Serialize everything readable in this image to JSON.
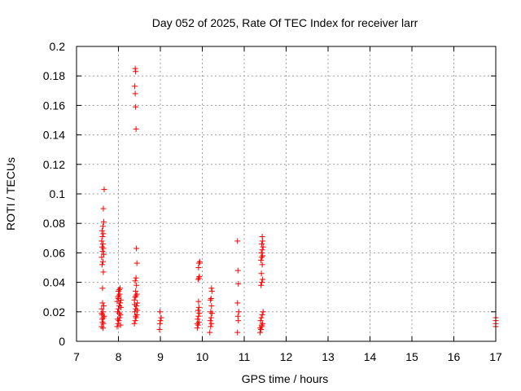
{
  "chart_data": {
    "type": "scatter",
    "title": "Day 052 of 2025, Rate Of TEC Index for receiver larr",
    "xlabel": "GPS time / hours",
    "ylabel": "ROTI / TECUs",
    "xlim": [
      7,
      17
    ],
    "ylim": [
      0,
      0.2
    ],
    "xticks": [
      "7",
      "8",
      "9",
      "10",
      "11",
      "12",
      "13",
      "14",
      "15",
      "16",
      "17"
    ],
    "yticks": [
      "0",
      "0.02",
      "0.04",
      "0.06",
      "0.08",
      "0.1",
      "0.12",
      "0.14",
      "0.16",
      "0.18",
      "0.2"
    ],
    "grid": true,
    "marker_color": "#ff0000",
    "series": [
      {
        "points": [
          [
            7.6,
            0.01
          ],
          [
            7.62,
            0.013
          ],
          [
            7.64,
            0.016
          ],
          [
            7.61,
            0.018
          ],
          [
            7.63,
            0.02
          ],
          [
            7.6,
            0.022
          ],
          [
            7.65,
            0.024
          ],
          [
            7.62,
            0.026
          ],
          [
            7.64,
            0.012
          ],
          [
            7.61,
            0.015
          ],
          [
            7.63,
            0.009
          ],
          [
            7.66,
            0.017
          ],
          [
            7.6,
            0.019
          ],
          [
            7.62,
            0.036
          ],
          [
            7.64,
            0.047
          ],
          [
            7.61,
            0.052
          ],
          [
            7.63,
            0.054
          ],
          [
            7.6,
            0.057
          ],
          [
            7.65,
            0.059
          ],
          [
            7.62,
            0.061
          ],
          [
            7.64,
            0.063
          ],
          [
            7.61,
            0.064
          ],
          [
            7.63,
            0.066
          ],
          [
            7.6,
            0.068
          ],
          [
            7.62,
            0.071
          ],
          [
            7.64,
            0.073
          ],
          [
            7.61,
            0.075
          ],
          [
            7.63,
            0.078
          ],
          [
            7.65,
            0.081
          ],
          [
            7.64,
            0.09
          ],
          [
            7.66,
            0.103
          ],
          [
            7.97,
            0.01
          ],
          [
            7.99,
            0.012
          ],
          [
            8.01,
            0.014
          ],
          [
            8.03,
            0.016
          ],
          [
            8.05,
            0.018
          ],
          [
            7.98,
            0.02
          ],
          [
            8.0,
            0.022
          ],
          [
            8.02,
            0.024
          ],
          [
            8.04,
            0.026
          ],
          [
            8.06,
            0.028
          ],
          [
            7.99,
            0.03
          ],
          [
            8.01,
            0.031
          ],
          [
            8.03,
            0.032
          ],
          [
            8.0,
            0.034
          ],
          [
            8.02,
            0.035
          ],
          [
            8.04,
            0.036
          ],
          [
            7.98,
            0.015
          ],
          [
            8.05,
            0.011
          ],
          [
            8.02,
            0.019
          ],
          [
            8.06,
            0.023
          ],
          [
            7.97,
            0.027
          ],
          [
            8.0,
            0.029
          ],
          [
            8.38,
            0.012
          ],
          [
            8.4,
            0.014
          ],
          [
            8.42,
            0.016
          ],
          [
            8.44,
            0.018
          ],
          [
            8.39,
            0.02
          ],
          [
            8.41,
            0.022
          ],
          [
            8.43,
            0.024
          ],
          [
            8.45,
            0.026
          ],
          [
            8.38,
            0.028
          ],
          [
            8.4,
            0.03
          ],
          [
            8.42,
            0.031
          ],
          [
            8.44,
            0.032
          ],
          [
            8.41,
            0.034
          ],
          [
            8.43,
            0.038
          ],
          [
            8.4,
            0.041
          ],
          [
            8.42,
            0.043
          ],
          [
            8.44,
            0.053
          ],
          [
            8.43,
            0.063
          ],
          [
            8.39,
            0.025
          ],
          [
            8.45,
            0.021
          ],
          [
            8.41,
            0.017
          ],
          [
            8.42,
            0.144
          ],
          [
            8.41,
            0.159
          ],
          [
            8.4,
            0.168
          ],
          [
            8.39,
            0.173
          ],
          [
            8.41,
            0.183
          ],
          [
            8.4,
            0.185
          ],
          [
            8.98,
            0.008
          ],
          [
            8.99,
            0.012
          ],
          [
            9.0,
            0.014
          ],
          [
            9.02,
            0.016
          ],
          [
            8.99,
            0.02
          ],
          [
            9.88,
            0.009
          ],
          [
            9.9,
            0.011
          ],
          [
            9.92,
            0.013
          ],
          [
            9.89,
            0.015
          ],
          [
            9.91,
            0.017
          ],
          [
            9.93,
            0.019
          ],
          [
            9.9,
            0.021
          ],
          [
            9.92,
            0.023
          ],
          [
            9.88,
            0.012
          ],
          [
            9.91,
            0.027
          ],
          [
            9.9,
            0.042
          ],
          [
            9.92,
            0.043
          ],
          [
            9.93,
            0.044
          ],
          [
            9.91,
            0.05
          ],
          [
            9.92,
            0.053
          ],
          [
            9.94,
            0.054
          ],
          [
            10.18,
            0.006
          ],
          [
            10.2,
            0.01
          ],
          [
            10.22,
            0.012
          ],
          [
            10.19,
            0.014
          ],
          [
            10.21,
            0.016
          ],
          [
            10.23,
            0.019
          ],
          [
            10.2,
            0.02
          ],
          [
            10.22,
            0.024
          ],
          [
            10.19,
            0.028
          ],
          [
            10.21,
            0.029
          ],
          [
            10.23,
            0.034
          ],
          [
            10.22,
            0.036
          ],
          [
            10.84,
            0.006
          ],
          [
            10.86,
            0.014
          ],
          [
            10.85,
            0.017
          ],
          [
            10.87,
            0.02
          ],
          [
            10.84,
            0.026
          ],
          [
            10.86,
            0.039
          ],
          [
            10.85,
            0.048
          ],
          [
            10.84,
            0.068
          ],
          [
            11.38,
            0.006
          ],
          [
            11.4,
            0.008
          ],
          [
            11.42,
            0.01
          ],
          [
            11.44,
            0.012
          ],
          [
            11.39,
            0.014
          ],
          [
            11.41,
            0.016
          ],
          [
            11.43,
            0.018
          ],
          [
            11.45,
            0.02
          ],
          [
            11.38,
            0.009
          ],
          [
            11.42,
            0.011
          ],
          [
            11.4,
            0.038
          ],
          [
            11.42,
            0.04
          ],
          [
            11.44,
            0.042
          ],
          [
            11.41,
            0.046
          ],
          [
            11.43,
            0.052
          ],
          [
            11.4,
            0.055
          ],
          [
            11.42,
            0.057
          ],
          [
            11.44,
            0.058
          ],
          [
            11.41,
            0.06
          ],
          [
            11.43,
            0.062
          ],
          [
            11.45,
            0.064
          ],
          [
            11.42,
            0.066
          ],
          [
            11.44,
            0.068
          ],
          [
            11.43,
            0.071
          ],
          [
            17.0,
            0.01
          ],
          [
            17.0,
            0.012
          ],
          [
            17.0,
            0.014
          ],
          [
            17.0,
            0.016
          ]
        ]
      }
    ]
  }
}
